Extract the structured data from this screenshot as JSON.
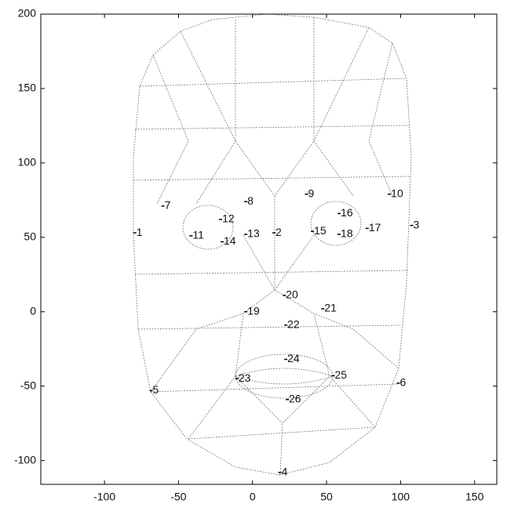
{
  "chart_data": {
    "type": "scatter",
    "x": [
      -79,
      15,
      108,
      19,
      -68,
      99,
      -60,
      -4,
      37,
      93,
      -41,
      -21,
      -4,
      -20,
      41,
      59,
      78,
      59,
      -4,
      22,
      48,
      23,
      -10,
      23,
      55,
      24
    ],
    "y": [
      53,
      53,
      58,
      -108,
      -53,
      -48,
      71,
      74,
      79,
      79,
      51,
      62,
      52,
      47,
      54,
      66,
      56,
      52,
      0,
      11,
      2,
      -9,
      -45,
      -32,
      -43,
      -59
    ],
    "labels": [
      "1",
      "2",
      "3",
      "4",
      "5",
      "6",
      "7",
      "8",
      "9",
      "10",
      "11",
      "12",
      "13",
      "14",
      "15",
      "16",
      "17",
      "18",
      "19",
      "20",
      "21",
      "22",
      "23",
      "24",
      "25",
      "26"
    ],
    "color": "#000000",
    "xlim": [
      -143,
      165
    ],
    "ylim": [
      -116,
      200
    ],
    "xticks": [
      -100,
      -50,
      0,
      50,
      100,
      150
    ],
    "yticks": [
      -100,
      -50,
      0,
      50,
      100,
      150,
      200
    ]
  }
}
